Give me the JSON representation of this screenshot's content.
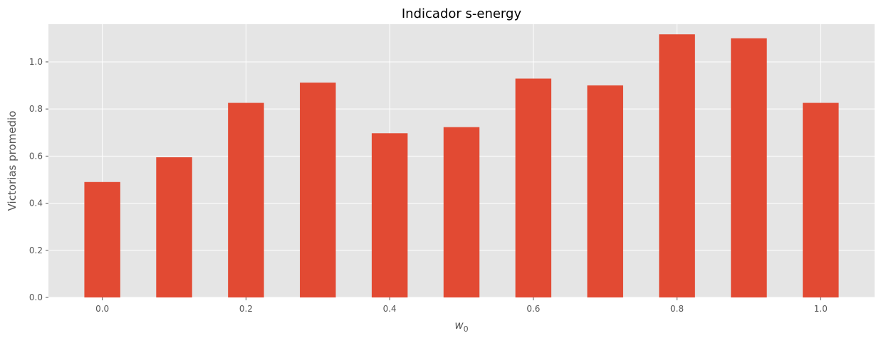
{
  "chart_data": {
    "type": "bar",
    "title": "Indicador s-energy",
    "xlabel_main": "w",
    "xlabel_sub": "0",
    "ylabel": "Victorias promedio",
    "x": [
      0.0,
      0.1,
      0.2,
      0.3,
      0.4,
      0.5,
      0.6,
      0.7,
      0.8,
      0.9,
      1.0
    ],
    "values": [
      0.49,
      0.595,
      0.826,
      0.912,
      0.697,
      0.723,
      0.929,
      0.9,
      1.117,
      1.1,
      0.826
    ],
    "xlim": [
      -0.075,
      1.075
    ],
    "ylim": [
      0,
      1.16
    ],
    "xticks": [
      "0.0",
      "0.2",
      "0.4",
      "0.6",
      "0.8",
      "1.0"
    ],
    "yticks": [
      "0.0",
      "0.2",
      "0.4",
      "0.6",
      "0.8",
      "1.0"
    ],
    "grid": true,
    "colors": {
      "bar": "#e24a33",
      "background": "#e5e5e5",
      "grid": "#ffffff"
    }
  }
}
